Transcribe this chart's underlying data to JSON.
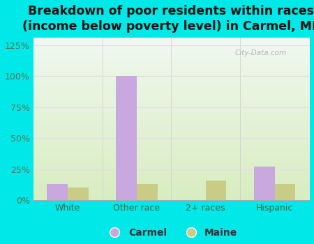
{
  "title": "Breakdown of poor residents within races\n(income below poverty level) in Carmel, ME",
  "categories": [
    "White",
    "Other race",
    "2+ races",
    "Hispanic"
  ],
  "carmel_values": [
    13,
    100,
    0,
    27
  ],
  "maine_values": [
    10,
    13,
    16,
    13
  ],
  "carmel_color": "#c9a8e0",
  "maine_color": "#c8cc84",
  "background_outer": "#00e8e8",
  "background_inner_bottom": "#d8edc0",
  "background_inner_top": "#f0f8f0",
  "ylim": [
    0,
    131
  ],
  "yticks": [
    0,
    25,
    50,
    75,
    100,
    125
  ],
  "ytick_labels": [
    "0%",
    "25%",
    "50%",
    "75%",
    "100%",
    "125%"
  ],
  "bar_width": 0.3,
  "title_fontsize": 12.5,
  "legend_labels": [
    "Carmel",
    "Maine"
  ],
  "grid_color": "#e8d8e8",
  "tick_color": "#557755",
  "watermark": "City-Data.com"
}
